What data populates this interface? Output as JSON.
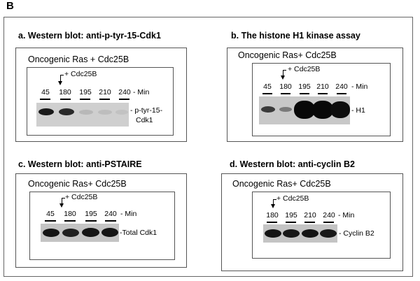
{
  "figure_label": "B",
  "panels": {
    "a": {
      "title": "a. Western blot: anti-p-tyr-15-Cdk1",
      "heading": "Oncogenic Ras + Cdc25B",
      "arrow_label": "+ Cdc25B",
      "lanes": [
        "45",
        "180",
        "195",
        "210",
        "240"
      ],
      "unit": "- Min",
      "band_label_1": "- p-tyr-15-",
      "band_label_2": "Cdk1"
    },
    "b": {
      "title": "b. The histone H1 kinase assay",
      "heading": "Oncogenic Ras+ Cdc25B",
      "arrow_label": "+ Cdc25B",
      "lanes": [
        "45",
        "180",
        "195",
        "210",
        "240"
      ],
      "unit": "- Min",
      "band_label": "- H1"
    },
    "c": {
      "title": "c. Western blot: anti-PSTAIRE",
      "heading": "Oncogenic Ras+ Cdc25B",
      "arrow_label": "+ Cdc25B",
      "lanes": [
        "45",
        "180",
        "195",
        "240"
      ],
      "unit": "- Min",
      "band_label": "-Total  Cdk1"
    },
    "d": {
      "title": "d. Western blot: anti-cyclin B2",
      "heading": "Oncogenic Ras+ Cdc25B",
      "arrow_label": "+ Cdc25B",
      "lanes": [
        "180",
        "195",
        "210",
        "240"
      ],
      "unit": "- Min",
      "band_label": "- Cyclin B2"
    }
  }
}
